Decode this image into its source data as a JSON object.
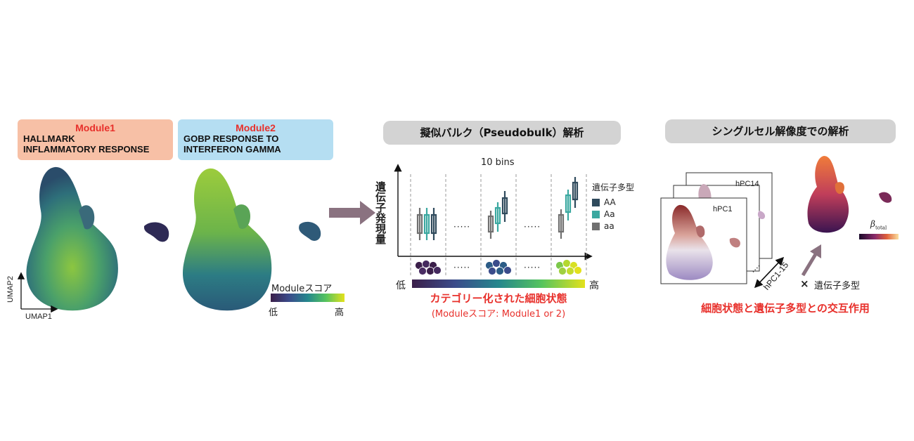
{
  "panel1": {
    "module1": {
      "title": "Module1",
      "line1": "HALLMARK",
      "line2": "INFLAMMATORY RESPONSE",
      "bg": "#f7c0a6"
    },
    "module2": {
      "title": "Module2",
      "line1": "GOBP RESPONSE TO",
      "line2": "INTERFERON GAMMA",
      "bg": "#b5def2"
    },
    "axis_y": "UMAP2",
    "axis_x": "UMAP1",
    "colorbar": {
      "title": "Moduleスコア",
      "low": "低",
      "high": "高"
    }
  },
  "panel2": {
    "header": "擬似バルク（Pseudobulk）解析",
    "bins_label": "10 bins",
    "ylabel": "遺伝子発現量",
    "legend_title": "遺伝子多型",
    "legend": [
      {
        "label": "AA",
        "color": "#2f4a5c"
      },
      {
        "label": "Aa",
        "color": "#3aa8a0"
      },
      {
        "label": "aa",
        "color": "#707070"
      }
    ],
    "dots": "·····",
    "low": "低",
    "high": "高",
    "caption_main": "カテゴリー化された細胞状態",
    "caption_sub": "(Moduleスコア: Module1 or 2)"
  },
  "panel3": {
    "header": "シングルセル解像度での解析",
    "card_back": "hPC14",
    "card_front": "hPC1",
    "range_label": "hPC1-15",
    "cross": "×",
    "genotype": "遺伝子多型",
    "beta": "β",
    "beta_sub": "total",
    "caption": "細胞状態と遺伝子多型との交互作用"
  }
}
